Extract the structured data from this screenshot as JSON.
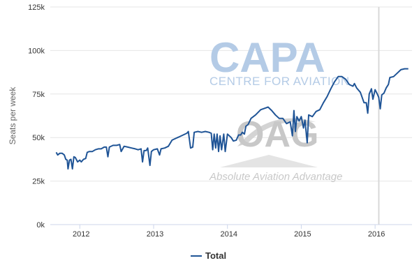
{
  "chart_data": {
    "type": "line",
    "ylabel": "Seats per week",
    "xlabel": "",
    "ylim": [
      0,
      125000
    ],
    "yticks": [
      {
        "value": 0,
        "label": "0k"
      },
      {
        "value": 25000,
        "label": "25k"
      },
      {
        "value": 50000,
        "label": "50k"
      },
      {
        "value": 75000,
        "label": "75k"
      },
      {
        "value": 100000,
        "label": "100k"
      },
      {
        "value": 125000,
        "label": "125k"
      }
    ],
    "xlim": [
      2011.6,
      2016.5
    ],
    "xticks": [
      {
        "value": 2012.0,
        "label": "2012"
      },
      {
        "value": 2013.0,
        "label": "2013"
      },
      {
        "value": 2014.0,
        "label": "2014"
      },
      {
        "value": 2015.0,
        "label": "2015"
      },
      {
        "value": 2016.0,
        "label": "2016"
      }
    ],
    "marker_line_x": 2016.05,
    "grid": "horizontal",
    "legend_position": "bottom-center",
    "series": [
      {
        "name": "Total",
        "color": "#1f5496",
        "points": [
          [
            2011.68,
            41500
          ],
          [
            2011.7,
            40000
          ],
          [
            2011.73,
            41000
          ],
          [
            2011.76,
            41000
          ],
          [
            2011.79,
            40000
          ],
          [
            2011.81,
            37500
          ],
          [
            2011.83,
            37000
          ],
          [
            2011.84,
            32000
          ],
          [
            2011.86,
            37000
          ],
          [
            2011.88,
            37500
          ],
          [
            2011.9,
            32000
          ],
          [
            2011.92,
            39000
          ],
          [
            2011.94,
            38500
          ],
          [
            2011.97,
            36000
          ],
          [
            2012.0,
            37000
          ],
          [
            2012.02,
            36000
          ],
          [
            2012.05,
            37500
          ],
          [
            2012.08,
            38000
          ],
          [
            2012.1,
            41500
          ],
          [
            2012.13,
            42000
          ],
          [
            2012.17,
            42000
          ],
          [
            2012.21,
            43000
          ],
          [
            2012.25,
            43500
          ],
          [
            2012.29,
            43500
          ],
          [
            2012.33,
            44500
          ],
          [
            2012.36,
            44500
          ],
          [
            2012.38,
            39000
          ],
          [
            2012.4,
            44500
          ],
          [
            2012.45,
            45500
          ],
          [
            2012.5,
            45500
          ],
          [
            2012.54,
            46000
          ],
          [
            2012.56,
            42000
          ],
          [
            2012.6,
            45000
          ],
          [
            2012.65,
            44500
          ],
          [
            2012.7,
            44000
          ],
          [
            2012.75,
            43500
          ],
          [
            2012.79,
            43000
          ],
          [
            2012.83,
            43500
          ],
          [
            2012.85,
            36000
          ],
          [
            2012.87,
            42500
          ],
          [
            2012.9,
            42500
          ],
          [
            2012.92,
            44000
          ],
          [
            2012.95,
            34000
          ],
          [
            2012.97,
            42000
          ],
          [
            2013.0,
            43000
          ],
          [
            2013.05,
            43500
          ],
          [
            2013.08,
            40000
          ],
          [
            2013.1,
            43500
          ],
          [
            2013.15,
            44000
          ],
          [
            2013.2,
            45000
          ],
          [
            2013.25,
            48500
          ],
          [
            2013.3,
            49500
          ],
          [
            2013.35,
            50500
          ],
          [
            2013.4,
            51500
          ],
          [
            2013.45,
            52500
          ],
          [
            2013.47,
            53500
          ],
          [
            2013.5,
            44000
          ],
          [
            2013.53,
            44500
          ],
          [
            2013.55,
            53000
          ],
          [
            2013.6,
            53500
          ],
          [
            2013.65,
            53000
          ],
          [
            2013.7,
            53500
          ],
          [
            2013.75,
            53000
          ],
          [
            2013.78,
            52500
          ],
          [
            2013.8,
            43000
          ],
          [
            2013.82,
            52000
          ],
          [
            2013.84,
            44000
          ],
          [
            2013.86,
            52000
          ],
          [
            2013.88,
            42000
          ],
          [
            2013.9,
            51000
          ],
          [
            2013.92,
            43000
          ],
          [
            2013.95,
            52000
          ],
          [
            2013.97,
            42000
          ],
          [
            2014.0,
            52000
          ],
          [
            2014.05,
            50000
          ],
          [
            2014.08,
            48000
          ],
          [
            2014.12,
            48500
          ],
          [
            2014.15,
            51500
          ],
          [
            2014.18,
            51500
          ],
          [
            2014.2,
            53000
          ],
          [
            2014.23,
            52000
          ],
          [
            2014.25,
            56500
          ],
          [
            2014.28,
            57500
          ],
          [
            2014.32,
            61000
          ],
          [
            2014.38,
            63000
          ],
          [
            2014.45,
            66000
          ],
          [
            2014.55,
            67500
          ],
          [
            2014.6,
            65500
          ],
          [
            2014.65,
            63000
          ],
          [
            2014.7,
            61000
          ],
          [
            2014.75,
            61000
          ],
          [
            2014.8,
            58000
          ],
          [
            2014.85,
            59000
          ],
          [
            2014.88,
            51000
          ],
          [
            2014.9,
            65500
          ],
          [
            2014.92,
            53500
          ],
          [
            2014.94,
            62000
          ],
          [
            2014.97,
            59500
          ],
          [
            2015.0,
            62000
          ],
          [
            2015.03,
            55500
          ],
          [
            2015.05,
            60000
          ],
          [
            2015.08,
            47000
          ],
          [
            2015.1,
            63000
          ],
          [
            2015.15,
            62000
          ],
          [
            2015.2,
            65000
          ],
          [
            2015.25,
            66000
          ],
          [
            2015.3,
            70000
          ],
          [
            2015.35,
            73500
          ],
          [
            2015.4,
            78000
          ],
          [
            2015.45,
            82000
          ],
          [
            2015.5,
            85000
          ],
          [
            2015.55,
            85000
          ],
          [
            2015.6,
            83500
          ],
          [
            2015.65,
            80500
          ],
          [
            2015.7,
            79500
          ],
          [
            2015.72,
            81000
          ],
          [
            2015.75,
            78500
          ],
          [
            2015.8,
            76000
          ],
          [
            2015.85,
            70000
          ],
          [
            2015.88,
            70000
          ],
          [
            2015.9,
            64000
          ],
          [
            2015.92,
            75000
          ],
          [
            2015.95,
            78000
          ],
          [
            2015.97,
            72000
          ],
          [
            2016.0,
            77500
          ],
          [
            2016.03,
            75000
          ],
          [
            2016.05,
            73000
          ],
          [
            2016.07,
            66500
          ],
          [
            2016.09,
            74500
          ],
          [
            2016.12,
            75500
          ],
          [
            2016.15,
            78500
          ],
          [
            2016.18,
            80500
          ],
          [
            2016.2,
            84500
          ],
          [
            2016.25,
            85000
          ],
          [
            2016.3,
            87000
          ],
          [
            2016.35,
            89000
          ],
          [
            2016.4,
            89500
          ],
          [
            2016.45,
            89500
          ]
        ]
      }
    ]
  },
  "watermark": {
    "capa": "CAPA",
    "capa_sub": "CENTRE FOR AVIATION",
    "oag": "OAG",
    "oag_sub": "Absolute Aviation Advantage"
  }
}
